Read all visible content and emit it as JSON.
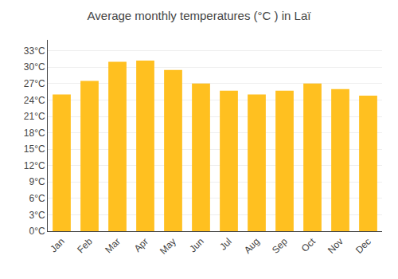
{
  "chart_data": {
    "type": "bar",
    "title": "Average monthly temperatures (°C ) in Laï",
    "categories": [
      "Jan",
      "Feb",
      "Mar",
      "Apr",
      "May",
      "Jun",
      "Jul",
      "Aug",
      "Sep",
      "Oct",
      "Nov",
      "Dec"
    ],
    "values": [
      25.0,
      27.5,
      31.0,
      31.2,
      29.5,
      27.0,
      25.7,
      25.0,
      25.7,
      27.0,
      26.0,
      24.8
    ],
    "color": "#FFC020",
    "ylim": [
      0,
      35
    ],
    "yticks": [
      {
        "value": 0,
        "label": "0°C"
      },
      {
        "value": 3,
        "label": "3°C"
      },
      {
        "value": 6,
        "label": "6°C"
      },
      {
        "value": 9,
        "label": "9°C"
      },
      {
        "value": 12,
        "label": "12°C"
      },
      {
        "value": 15,
        "label": "15°C"
      },
      {
        "value": 18,
        "label": "18°C"
      },
      {
        "value": 21,
        "label": "21°C"
      },
      {
        "value": 24,
        "label": "24°C"
      },
      {
        "value": 27,
        "label": "27°C"
      },
      {
        "value": 30,
        "label": "30°C"
      },
      {
        "value": 33,
        "label": "33°C"
      }
    ],
    "grid": true
  }
}
